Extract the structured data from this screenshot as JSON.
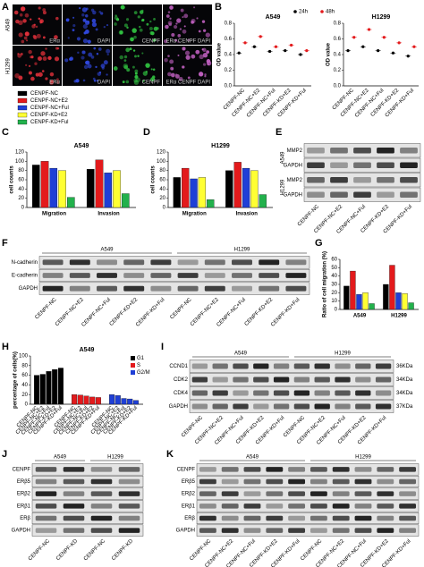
{
  "panel_letters": [
    "A",
    "B",
    "C",
    "D",
    "E",
    "F",
    "G",
    "H",
    "I",
    "J",
    "K"
  ],
  "panel_a": {
    "row_labels": [
      "A549",
      "H1299"
    ],
    "channel_labels": [
      "ERα",
      "DAPI",
      "CENPF",
      "ERα CENPF DAPI"
    ]
  },
  "chart_data": [
    {
      "type": "dot",
      "title": "A549",
      "y_label": "OD value",
      "categories": [
        "CENPF-NC",
        "CENPF-NC+E2",
        "CENPF-NC+Ful",
        "CENPF-KD+E2",
        "CENPF-KD+Ful"
      ],
      "series": [
        {
          "name": "24h",
          "color": "#000000",
          "values": [
            0.42,
            0.5,
            0.44,
            0.45,
            0.4
          ]
        },
        {
          "name": "48h",
          "color": "#e31a1c",
          "values": [
            0.55,
            0.63,
            0.5,
            0.52,
            0.45
          ]
        }
      ],
      "ylim": [
        0,
        0.8
      ],
      "yticks": [
        {
          "value": 0,
          "label": "0.0"
        },
        0.2,
        0.4,
        0.6,
        0.8
      ]
    },
    {
      "type": "dot",
      "title": "H1299",
      "y_label": "OD value",
      "categories": [
        "CENPF-NC",
        "CENPF-NC+E2",
        "CENPF-NC+Ful",
        "CENPF-KD+E2",
        "CENPF-KD+Ful"
      ],
      "series": [
        {
          "name": "24h",
          "color": "#000000",
          "values": [
            0.45,
            0.5,
            0.45,
            0.42,
            0.38
          ]
        },
        {
          "name": "48h",
          "color": "#e31a1c",
          "values": [
            0.62,
            0.72,
            0.62,
            0.55,
            0.5
          ]
        }
      ],
      "ylim": [
        0,
        0.8
      ],
      "yticks": [
        {
          "value": 0,
          "label": "0.0"
        },
        0.2,
        0.4,
        0.6,
        0.8
      ]
    },
    {
      "type": "bar",
      "title": "A549",
      "y_label": "cell counts",
      "categories": [
        "Migration",
        "Invasion"
      ],
      "series": [
        {
          "name": "CENPF-NC",
          "color": "#000000",
          "values": [
            92,
            83
          ]
        },
        {
          "name": "CENPF-NC+E2",
          "color": "#e31a1c",
          "values": [
            100,
            103
          ]
        },
        {
          "name": "CENPF-NC+Ful",
          "color": "#1f3fd6",
          "values": [
            85,
            75
          ]
        },
        {
          "name": "CENPF-KD+E2",
          "color": "#ffff33",
          "values": [
            80,
            80
          ]
        },
        {
          "name": "CENPF-KD+Ful",
          "color": "#22b14c",
          "values": [
            22,
            30
          ]
        }
      ],
      "ylim": [
        0,
        120
      ],
      "yticks": [
        0,
        20,
        40,
        60,
        80,
        100,
        120
      ]
    },
    {
      "type": "bar",
      "title": "H1299",
      "y_label": "cell counts",
      "categories": [
        "Migration",
        "Invasion"
      ],
      "series": [
        {
          "color": "#000000",
          "values": [
            65,
            80
          ]
        },
        {
          "color": "#e31a1c",
          "values": [
            85,
            98
          ]
        },
        {
          "color": "#1f3fd6",
          "values": [
            62,
            85
          ]
        },
        {
          "color": "#ffff33",
          "values": [
            65,
            80
          ]
        },
        {
          "color": "#22b14c",
          "values": [
            17,
            28
          ]
        }
      ],
      "ylim": [
        0,
        120
      ],
      "yticks": [
        0,
        20,
        40,
        60,
        80,
        100,
        120
      ]
    },
    {
      "type": "bar",
      "y_label": "Ratio of cell migration (%)",
      "categories": [
        "A549",
        "H1299"
      ],
      "series": [
        {
          "color": "#000000",
          "values": [
            28,
            30
          ]
        },
        {
          "color": "#e31a1c",
          "values": [
            46,
            53
          ]
        },
        {
          "color": "#1f3fd6",
          "values": [
            18,
            20
          ]
        },
        {
          "color": "#ffff33",
          "values": [
            20,
            19
          ]
        },
        {
          "color": "#22b14c",
          "values": [
            7,
            8
          ]
        }
      ],
      "ylim": [
        0,
        60
      ],
      "yticks": [
        0,
        10,
        20,
        30,
        40,
        50,
        60
      ]
    },
    {
      "type": "bar",
      "title": "A549",
      "y_label": "percentage of cells(%)",
      "legend": "upper right",
      "categories": [
        "CENPF-NC",
        "CENPF-NC+E2",
        "CENPF-NC+Ful",
        "CENPF-KD+E2",
        "CENPF-KD+Ful"
      ],
      "series": [
        {
          "name": "G1",
          "color": "#000000",
          "values": [
            60,
            62,
            68,
            72,
            75
          ]
        },
        {
          "name": "S",
          "color": "#e31a1c",
          "values": [
            20,
            19,
            17,
            15,
            14
          ]
        },
        {
          "name": "G2/M",
          "color": "#1f3fd6",
          "values": [
            20,
            18,
            12,
            11,
            8
          ]
        }
      ],
      "ylim": [
        0,
        100
      ],
      "yticks": [
        0,
        20,
        40,
        60,
        80,
        100
      ]
    }
  ],
  "blots": [
    {
      "row_groups": [
        "A549",
        "H1299"
      ],
      "rows": [
        "MMP2",
        "GAPDH",
        "MMP2",
        "GAPDH"
      ],
      "lanes": [
        "CENPF-NC",
        "CENPF-NC+E2",
        "CENPF-NC+Ful",
        "CENPF-KD+E2",
        "CENPF-KD+Ful"
      ]
    },
    {
      "groups": [
        "A549",
        "H1299"
      ],
      "rows": [
        "N-cadherin",
        "E-cadherin",
        "GAPDH"
      ],
      "lanes": [
        "CENPF-NC",
        "CENPF-NC+E2",
        "CENPF-NC+Ful",
        "CENPF-KD+E2",
        "CENPF-KD+Ful",
        "CENPF-NC",
        "CENPF-NC+E2",
        "CENPF-NC+Ful",
        "CENPF-KD+E2",
        "CENPF-KD+Ful"
      ]
    },
    {
      "groups": [
        "A549",
        "H1299"
      ],
      "rows": [
        "CCND1",
        "CDK2",
        "CDK4",
        "GAPDH"
      ],
      "sizes": [
        "36KDa",
        "34KDa",
        "34KDa",
        "37KDa"
      ],
      "lanes": [
        "CENPF-NC",
        "CENPF-NC+E2",
        "CENPF-NC+Ful",
        "CENPF-KD+E2",
        "CENPF-KD+Ful",
        "CENPF-NC",
        "CENPF-NC+E2",
        "CENPF-NC+Ful",
        "CENPF-KD+E2",
        "CENPF-KD+Ful"
      ]
    },
    {
      "groups": [
        "A549",
        "H1299"
      ],
      "rows": [
        "CENPF",
        "ERβ5",
        "ERβ2",
        "ERβ1",
        "ERβ",
        "GAPDH"
      ],
      "lanes": [
        "CENPF-NC",
        "CENPF-KD",
        "CENPF-NC",
        "CENPF-KD"
      ]
    },
    {
      "groups": [
        "A549",
        "H1299"
      ],
      "rows": [
        "CENPF",
        "ERβ5",
        "ERβ2",
        "ERβ1",
        "ERβ",
        "GAPDH"
      ],
      "lanes": [
        "CENPF-NC",
        "CENPF-NC+E2",
        "CENPF-NC+Ful",
        "CENPF-KD+E2",
        "CENPF-KD+Ful",
        "CENPF-NC",
        "CENPF-NC+E2",
        "CENPF-NC+Ful",
        "CENPF-KD+E2",
        "CENPF-KD+Ful"
      ]
    }
  ]
}
